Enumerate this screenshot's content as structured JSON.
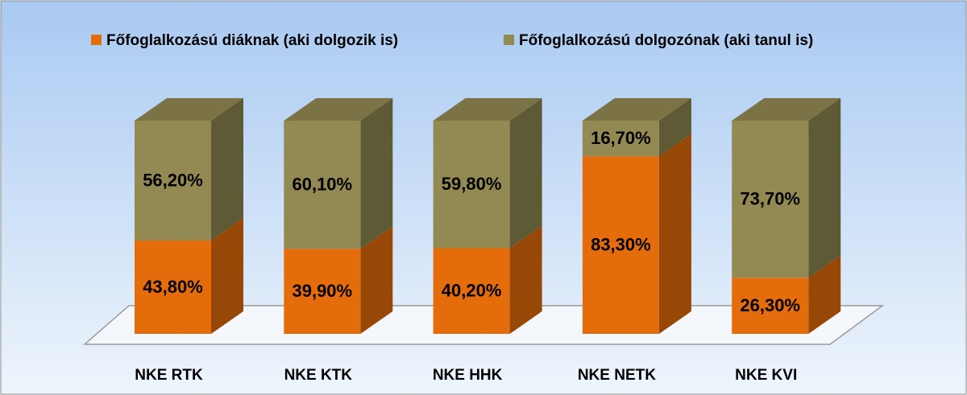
{
  "chart_data": {
    "type": "stacked-bar-3d",
    "categories": [
      "NKE RTK",
      "NKE KTK",
      "NKE HHK",
      "NKE NETK",
      "NKE KVI"
    ],
    "ylim": [
      0,
      100
    ],
    "legend": "top",
    "series": [
      {
        "name": "Főfoglalkozású diáknak (aki dolgozik is)",
        "color": "#e46c0a",
        "side_color": "#974806",
        "values": [
          43.8,
          39.9,
          40.2,
          83.3,
          26.3
        ],
        "value_labels": [
          "43,80%",
          "39,90%",
          "40,20%",
          "83,30%",
          "26,30%"
        ]
      },
      {
        "name": "Főfoglalkozású dolgozónak (aki tanul is)",
        "color": "#938953",
        "side_color": "#5f5a36",
        "values": [
          56.2,
          60.1,
          59.8,
          16.7,
          73.7
        ],
        "value_labels": [
          "56,20%",
          "60,10%",
          "59,80%",
          "16,70%",
          "73,70%"
        ]
      }
    ]
  }
}
